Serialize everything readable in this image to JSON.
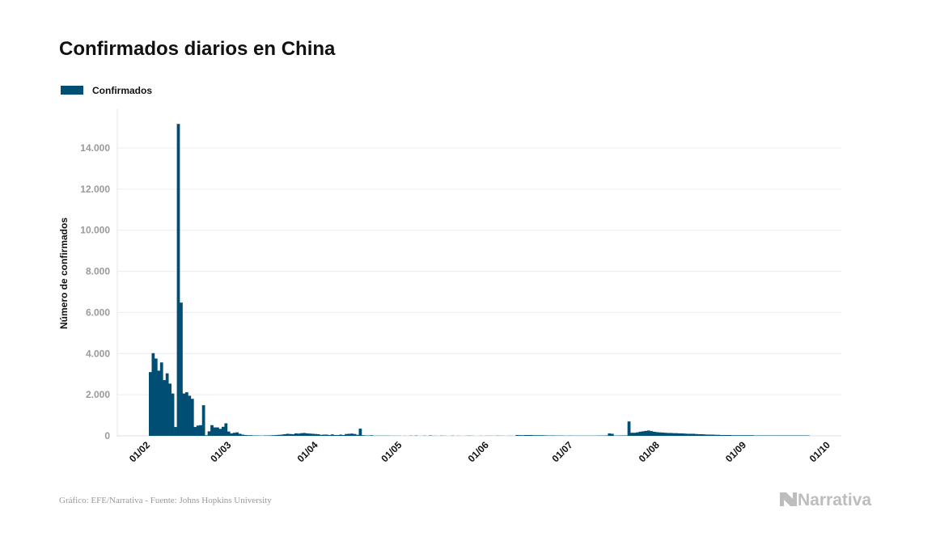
{
  "chart_data": {
    "type": "bar",
    "title": "Confirmados diarios en China",
    "xlabel": "",
    "ylabel": "Número de confirmados",
    "ylim": [
      0,
      15500
    ],
    "yticks": [
      0,
      2000,
      4000,
      6000,
      8000,
      10000,
      12000,
      14000
    ],
    "ytick_labels": [
      "0",
      "2.000",
      "4.000",
      "6.000",
      "8.000",
      "10.000",
      "12.000",
      "14.000"
    ],
    "xtick_labels": [
      "01/02",
      "01/03",
      "01/04",
      "01/05",
      "01/06",
      "01/07",
      "01/08",
      "01/09",
      "01/10"
    ],
    "grid": true,
    "legend_position": "top-left",
    "series": [
      {
        "name": "Confirmados",
        "color": "#004e74",
        "months": [
          {
            "month": "02",
            "values": [
              3100,
              4020,
              3760,
              3170,
              3570,
              2710,
              3040,
              2540,
              2060,
              430,
              15170,
              6480,
              2060,
              2120,
              1950,
              1800,
              430,
              500,
              520,
              1490,
              30,
              220,
              520,
              410,
              410,
              340,
              440,
              610,
              210
            ]
          },
          {
            "month": "03",
            "values": [
              120,
              150,
              170,
              100,
              60,
              40,
              30,
              30,
              20,
              20,
              15,
              10,
              20,
              20,
              25,
              30,
              40,
              50,
              60,
              80,
              100,
              90,
              80,
              120,
              110,
              130,
              140,
              120,
              110,
              100,
              90
            ]
          },
          {
            "month": "04",
            "values": [
              80,
              50,
              60,
              60,
              40,
              70,
              40,
              40,
              60,
              40,
              90,
              100,
              110,
              90,
              50,
              350,
              30,
              20,
              20,
              30,
              10,
              10,
              10,
              10,
              10,
              10,
              5,
              5,
              5,
              5
            ]
          },
          {
            "month": "05",
            "values": [
              0,
              5,
              0,
              10,
              0,
              15,
              0,
              0,
              10,
              0,
              20,
              5,
              5,
              0,
              10,
              5,
              0,
              0,
              10,
              0,
              5,
              0,
              0,
              5,
              10,
              5,
              0,
              0,
              5,
              0,
              5
            ]
          },
          {
            "month": "06",
            "values": [
              5,
              5,
              0,
              10,
              5,
              5,
              0,
              5,
              5,
              0,
              40,
              35,
              30,
              40,
              40,
              40,
              30,
              30,
              30,
              30,
              25,
              20,
              20,
              20,
              15,
              15,
              15,
              10,
              10,
              15
            ]
          },
          {
            "month": "07",
            "values": [
              10,
              10,
              10,
              10,
              10,
              10,
              10,
              10,
              10,
              15,
              15,
              15,
              20,
              120,
              100,
              15,
              15,
              20,
              20,
              20,
              700,
              150,
              150,
              170,
              200,
              220,
              240,
              260,
              230,
              200,
              180
            ]
          },
          {
            "month": "08",
            "values": [
              170,
              160,
              150,
              140,
              140,
              130,
              130,
              120,
              120,
              110,
              100,
              100,
              100,
              90,
              80,
              80,
              70,
              60,
              60,
              60,
              50,
              50,
              40,
              40,
              40,
              40,
              30,
              30,
              30,
              30,
              30
            ]
          },
          {
            "month": "09",
            "values": [
              30,
              30,
              30,
              20,
              20,
              20,
              20,
              20,
              20,
              20,
              20,
              20,
              20,
              20,
              20,
              20,
              20,
              20,
              20,
              20,
              20,
              20,
              20,
              0,
              0,
              0,
              0,
              0,
              0,
              0
            ]
          }
        ]
      }
    ]
  },
  "legend": {
    "label": "Confirmados"
  },
  "footer": {
    "source": "Gráfico: EFE/Narrativa - Fuente: Johns Hopkins University"
  },
  "logo": {
    "text": "Narrativa"
  }
}
